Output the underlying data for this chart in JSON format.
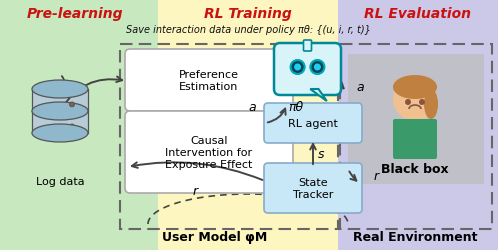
{
  "fig_width": 4.98,
  "fig_height": 2.51,
  "dpi": 100,
  "bg_prelearn": "#c8e8c0",
  "bg_rltraining": "#fdf6c0",
  "bg_rlevaluation": "#ccc8e8",
  "title_color": "#cc1111",
  "subtitle": "Save interaction data under policy πθ: {(u, i, r, t)}",
  "label_prelearn": "Pre-learning",
  "label_rltraining": "RL Training",
  "label_rlevaluation": "RL Evaluation",
  "label_pref": "Preference\nEstimation",
  "label_causal": "Causal\nIntervention for\nExposure Effect",
  "label_rlagent": "RL agent",
  "label_statetracker": "State\nTracker",
  "label_blackbox": "Black box",
  "label_usermodel": "User Model φM",
  "label_realenv": "Real Environment",
  "label_logdata": "Log data",
  "pi_theta": "πθ"
}
